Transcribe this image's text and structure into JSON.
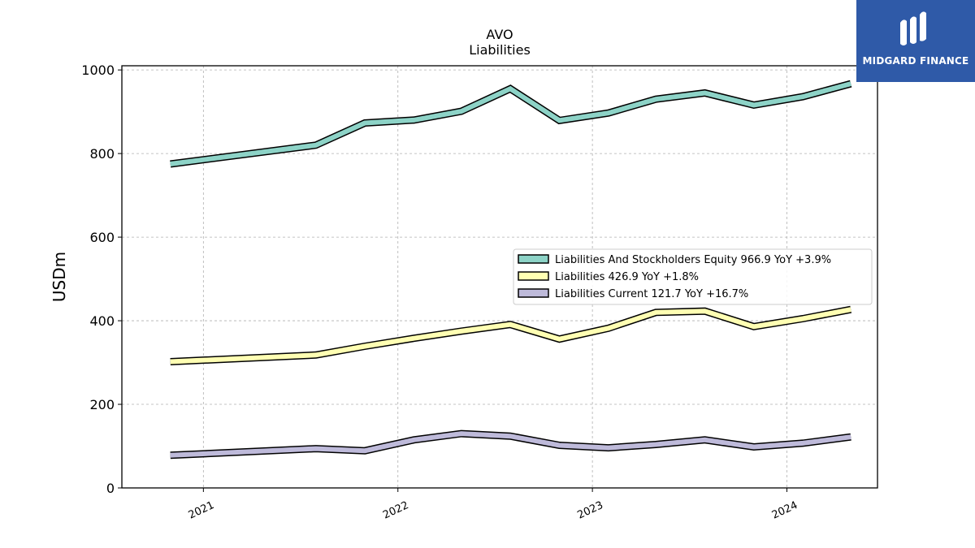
{
  "brand": {
    "name": "MIDGARD FINANCE",
    "background": "#2f5aa8"
  },
  "chart_data": {
    "type": "line",
    "title": "AVO",
    "subtitle": "Liabilities",
    "xlabel": "",
    "ylabel": "USDm",
    "x_ticks": [
      "2021",
      "2022",
      "2023",
      "2024"
    ],
    "x": [
      "2020-10-31",
      "2021-07-31",
      "2021-10-31",
      "2022-01-31",
      "2022-04-30",
      "2022-07-31",
      "2022-10-31",
      "2023-01-31",
      "2023-04-30",
      "2023-07-31",
      "2023-10-31",
      "2024-01-31",
      "2024-04-30"
    ],
    "ylim": [
      0,
      1010
    ],
    "y_ticks": [
      0,
      200,
      400,
      600,
      800,
      1000
    ],
    "grid": true,
    "legend_position": "center-right",
    "series": [
      {
        "name": "Liabilities And Stockholders Equity",
        "legend_label": "Liabilities And Stockholders Equity  966.9 YoY +3.9%",
        "color": "#8dd3c7",
        "values": [
          775,
          820,
          873,
          880,
          901,
          955,
          879,
          897,
          930,
          945,
          916,
          936,
          967
        ]
      },
      {
        "name": "Liabilities",
        "legend_label": "Liabilities  426.9 YoY +1.8%",
        "color": "#ffffb3",
        "values": [
          302,
          318,
          339,
          358,
          375,
          391,
          356,
          382,
          420,
          423,
          386,
          405,
          427
        ]
      },
      {
        "name": "Liabilities Current",
        "legend_label": "Liabilities Current  121.7 YoY +16.7%",
        "color": "#bebada",
        "values": [
          78,
          94,
          89,
          115,
          130,
          124,
          102,
          96,
          104,
          115,
          98,
          107,
          122
        ]
      }
    ]
  }
}
